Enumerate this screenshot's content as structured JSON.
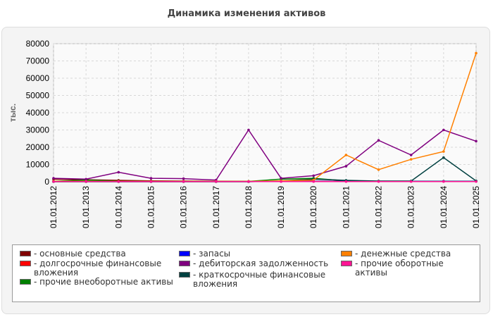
{
  "chart_data": {
    "type": "line",
    "title": "Динамика изменения активов",
    "ylabel": "тыс.",
    "xlabel": "",
    "ylim": [
      0,
      80000
    ],
    "yticks": [
      0,
      10000,
      20000,
      30000,
      40000,
      50000,
      60000,
      70000,
      80000
    ],
    "grid": true,
    "legend_position": "bottom",
    "categories": [
      "01.01.2012",
      "01.01.2013",
      "01.01.2014",
      "01.01.2015",
      "01.01.2016",
      "01.01.2017",
      "01.01.2018",
      "01.01.2019",
      "01.01.2020",
      "01.01.2021",
      "01.01.2022",
      "01.01.2023",
      "01.01.2024",
      "01.01.2025"
    ],
    "series": [
      {
        "name": "- основные средства",
        "color": "#800000",
        "values": [
          1500,
          1200,
          800,
          500,
          400,
          300,
          200,
          200,
          300,
          300,
          300,
          300,
          300,
          300
        ]
      },
      {
        "name": "- долгосрочные финансовые вложения",
        "color": "#ff0000",
        "values": [
          200,
          200,
          200,
          200,
          200,
          200,
          200,
          200,
          200,
          200,
          200,
          200,
          200,
          200
        ]
      },
      {
        "name": "- прочие внеоборотные активы",
        "color": "#008000",
        "values": [
          300,
          1000,
          300,
          200,
          200,
          200,
          200,
          1500,
          2000,
          500,
          300,
          300,
          300,
          300
        ]
      },
      {
        "name": "- запасы",
        "color": "#0000ff",
        "values": [
          100,
          100,
          100,
          100,
          100,
          100,
          100,
          200,
          200,
          200,
          200,
          200,
          200,
          200
        ]
      },
      {
        "name": "- дебиторская задолженность",
        "color": "#800080",
        "values": [
          2000,
          1500,
          5500,
          2000,
          1800,
          1000,
          30000,
          2000,
          3500,
          9000,
          24000,
          15500,
          30000,
          23500
        ]
      },
      {
        "name": "- краткосрочные финансовые вложения",
        "color": "#004040",
        "values": [
          0,
          0,
          0,
          0,
          0,
          0,
          0,
          500,
          1500,
          800,
          400,
          400,
          14000,
          500
        ]
      },
      {
        "name": "- денежные средства",
        "color": "#ff8000",
        "values": [
          300,
          200,
          200,
          200,
          200,
          200,
          200,
          500,
          1000,
          15500,
          7000,
          13000,
          17500,
          74500
        ]
      },
      {
        "name": "- прочие оборотные активы",
        "color": "#ff1493",
        "values": [
          100,
          100,
          100,
          100,
          100,
          100,
          100,
          100,
          100,
          100,
          100,
          100,
          100,
          100
        ]
      }
    ]
  }
}
